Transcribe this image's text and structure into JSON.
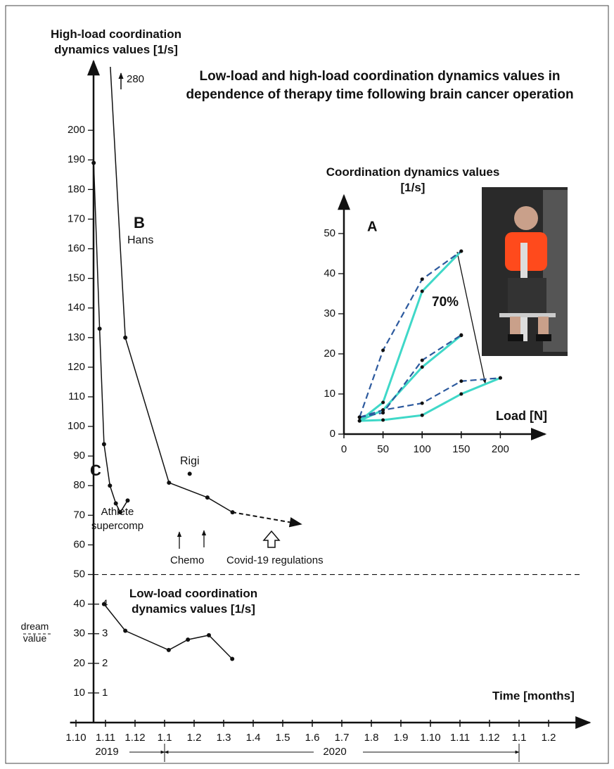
{
  "chart_data": [
    {
      "type": "line",
      "title": "Low-load and high-load coordination dynamics values in dependence of therapy time following brain cancer operation",
      "y_label": "High-load coordination dynamics values [1/s]",
      "x_label": "Time [months]",
      "xlim": [
        -0.2,
        17.2
      ],
      "xticks": [
        {
          "value": 0,
          "label": "1.10"
        },
        {
          "value": 1,
          "label": "1.11"
        },
        {
          "value": 2,
          "label": "1.12"
        },
        {
          "value": 3,
          "label": "1.1"
        },
        {
          "value": 4,
          "label": "1.2"
        },
        {
          "value": 5,
          "label": "1.3"
        },
        {
          "value": 6,
          "label": "1.4"
        },
        {
          "value": 7,
          "label": "1.5"
        },
        {
          "value": 8,
          "label": "1.6"
        },
        {
          "value": 9,
          "label": "1.7"
        },
        {
          "value": 10,
          "label": "1.8"
        },
        {
          "value": 11,
          "label": "1.9"
        },
        {
          "value": 12,
          "label": "1.10"
        },
        {
          "value": 13,
          "label": "1.11"
        },
        {
          "value": 14,
          "label": "1.12"
        },
        {
          "value": 15,
          "label": "1.1"
        },
        {
          "value": 16,
          "label": "1.2"
        }
      ],
      "ylim": [
        0,
        220
      ],
      "yticks": [
        10,
        20,
        30,
        40,
        50,
        60,
        70,
        80,
        90,
        100,
        110,
        120,
        130,
        140,
        150,
        160,
        170,
        180,
        190,
        200
      ],
      "y2lim": [
        0,
        22
      ],
      "y2ticks": [
        1,
        2,
        3,
        4
      ],
      "divider_y": 50,
      "years": [
        {
          "label": "2019",
          "end": 3
        },
        {
          "label": "2020",
          "start": 3,
          "end": 15
        }
      ],
      "letters": [
        "B",
        "C"
      ],
      "notes": {
        "peak": "280",
        "chemo": "Chemo",
        "covid": "Covid-19 regulations",
        "dream": "dream value"
      },
      "series": [
        {
          "name": "Hans",
          "color": "#111111",
          "x": [
            0.84,
            1.67,
            3.15,
            4.45,
            5.3
          ],
          "values": [
            280,
            130,
            81,
            76,
            71
          ]
        },
        {
          "name": "Athlete supercomp",
          "color": "#111111",
          "x": [
            0.6,
            0.8,
            0.95,
            1.15,
            1.35,
            1.5,
            1.75
          ],
          "values": [
            189,
            133,
            94,
            80,
            74,
            71,
            75
          ]
        },
        {
          "name": "Rigi",
          "color": "#111111",
          "x": [
            3.85
          ],
          "values": [
            84
          ]
        },
        {
          "name": "Low-load coordination dynamics values [1/s]",
          "color": "#111111",
          "axis": "y2",
          "x": [
            0.95,
            1.67,
            3.14,
            3.79,
            4.5,
            5.29
          ],
          "values": [
            4.0,
            3.1,
            2.45,
            2.8,
            2.95,
            2.15
          ]
        }
      ]
    },
    {
      "type": "line",
      "y_label": "Coordination dynamics values [1/s]",
      "x_label": "Load [N]",
      "letter": "A",
      "annotation": "70%",
      "xlim": [
        0,
        250
      ],
      "xticks": [
        0,
        50,
        100,
        150,
        200
      ],
      "ylim": [
        0,
        57
      ],
      "yticks": [
        0,
        10,
        20,
        30,
        40,
        50
      ],
      "series": [
        {
          "color": "#3fd8c8",
          "x": [
            20,
            50,
            100,
            150
          ],
          "values": [
            3.3,
            7.9,
            35.6,
            45.6
          ]
        },
        {
          "color": "#3fd8c8",
          "x": [
            20,
            50,
            100,
            150
          ],
          "values": [
            3.3,
            6,
            16.7,
            24.6
          ]
        },
        {
          "color": "#3fd8c8",
          "x": [
            20,
            50,
            100,
            150,
            200
          ],
          "values": [
            3.3,
            3.5,
            4.7,
            10,
            14
          ]
        },
        {
          "color": "#2d5a9e",
          "dashed": true,
          "x": [
            20,
            50,
            100,
            150
          ],
          "values": [
            4.2,
            20.9,
            38.6,
            45.6
          ]
        },
        {
          "color": "#2d5a9e",
          "dashed": true,
          "x": [
            20,
            50,
            100,
            150
          ],
          "values": [
            4.2,
            5.3,
            18.4,
            24.7
          ]
        },
        {
          "color": "#2d5a9e",
          "dashed": true,
          "x": [
            20,
            50,
            100,
            150,
            200
          ],
          "values": [
            4.2,
            6,
            7.7,
            13.2,
            14
          ]
        }
      ]
    }
  ]
}
